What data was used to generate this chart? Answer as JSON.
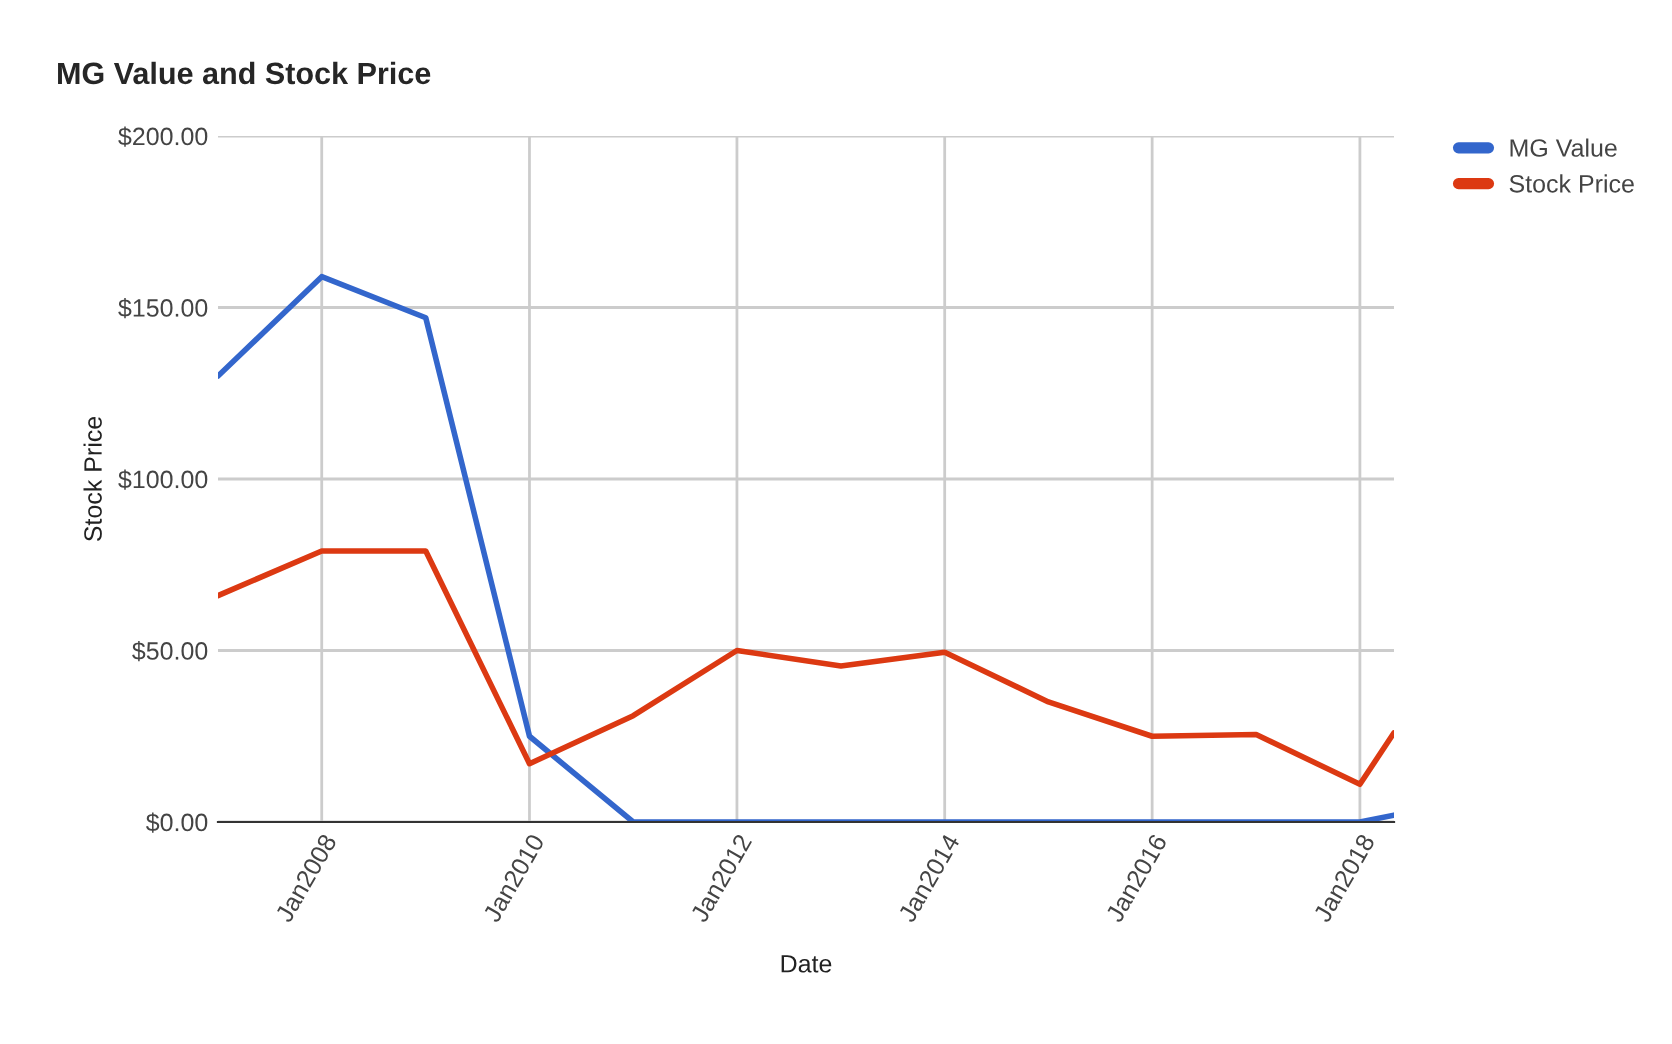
{
  "chart_data": {
    "type": "line",
    "title": "MG Value and Stock Price",
    "xlabel": "Date",
    "ylabel": "Stock Price",
    "x": [
      "2007-01",
      "2008-01",
      "2009-01",
      "2010-01",
      "2011-01",
      "2012-01",
      "2013-01",
      "2014-01",
      "2015-01",
      "2016-01",
      "2017-01",
      "2018-01",
      "2018-05"
    ],
    "series": [
      {
        "name": "MG Value",
        "color": "#3366cc",
        "values": [
          130,
          159,
          147,
          25,
          0,
          0,
          0,
          0,
          0,
          0,
          0,
          0,
          2
        ]
      },
      {
        "name": "Stock Price",
        "color": "#dc3912",
        "values": [
          66,
          79,
          79,
          17,
          31,
          50,
          45.5,
          49.5,
          35,
          25,
          25.5,
          11,
          26
        ]
      }
    ],
    "xlim": [
      "2007-01",
      "2018-05"
    ],
    "xticks": [
      {
        "value": "2008-01",
        "label": "Jan2008"
      },
      {
        "value": "2010-01",
        "label": "Jan2010"
      },
      {
        "value": "2012-01",
        "label": "Jan2012"
      },
      {
        "value": "2014-01",
        "label": "Jan2014"
      },
      {
        "value": "2016-01",
        "label": "Jan2016"
      },
      {
        "value": "2018-01",
        "label": "Jan2018"
      }
    ],
    "ylim": [
      0,
      200
    ],
    "yticks": [
      {
        "value": 0,
        "label": "$0.00"
      },
      {
        "value": 50,
        "label": "$50.00"
      },
      {
        "value": 100,
        "label": "$100.00"
      },
      {
        "value": 150,
        "label": "$150.00"
      },
      {
        "value": 200,
        "label": "$200.00"
      }
    ],
    "grid": true,
    "legend": "top right",
    "marker": "none",
    "line_style": "solid"
  }
}
